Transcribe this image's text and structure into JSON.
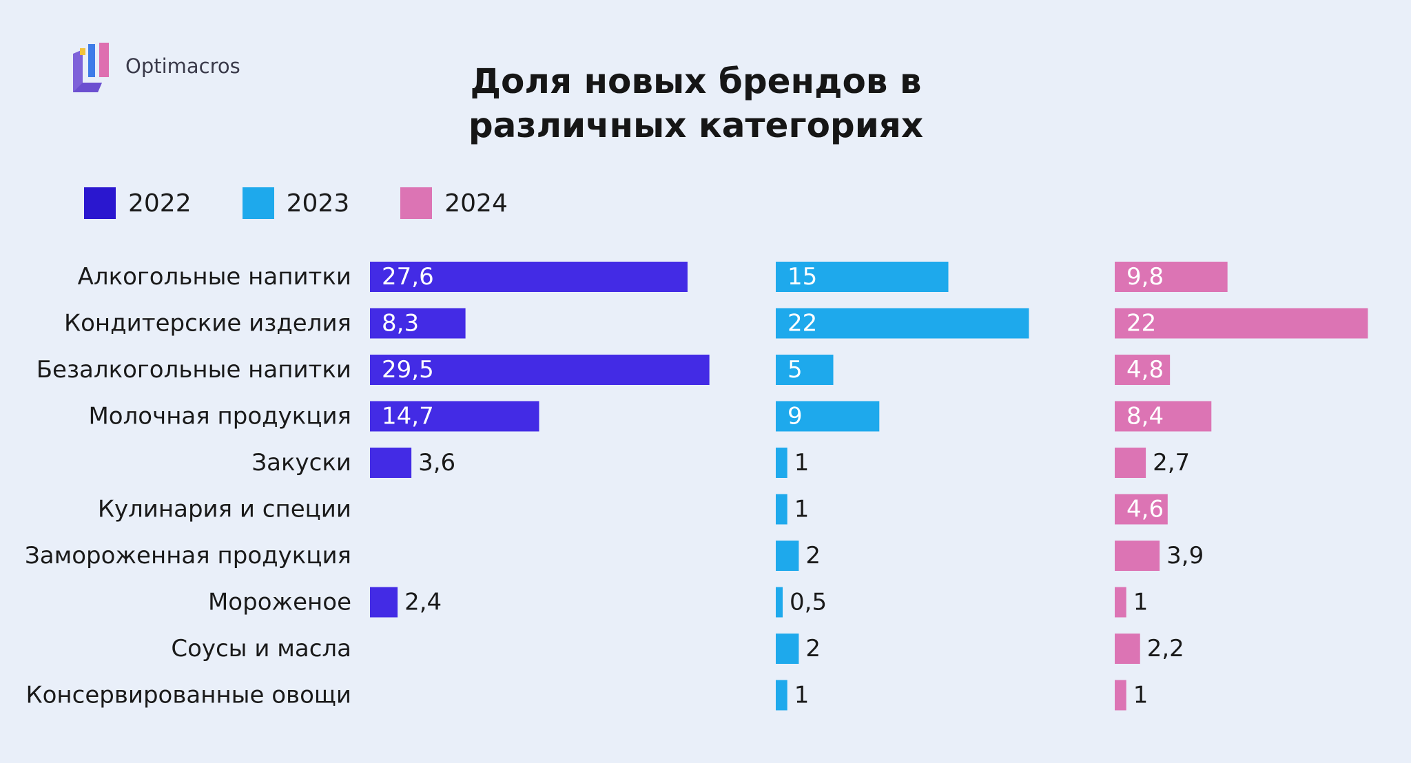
{
  "brand": {
    "name": "Optimacros"
  },
  "chart_data": {
    "type": "bar",
    "orientation": "horizontal",
    "layout": "small-multiples",
    "title": "Доля новых брендов в различных категориях",
    "title_lines": [
      "Доля новых брендов в",
      "различных категориях"
    ],
    "legend_position": "top-left",
    "grid": false,
    "categories": [
      "Алкогольные напитки",
      "Кондитерские изделия",
      "Безалкогольные напитки",
      "Молочная продукция",
      "Закуски",
      "Кулинария и специи",
      "Замороженная продукция",
      "Мороженое",
      "Соусы и масла",
      "Консервированные овощи"
    ],
    "series": [
      {
        "name": "2022",
        "color": "#432be5",
        "legend_color": "#2a17cf",
        "values": [
          27.6,
          8.3,
          29.5,
          14.7,
          3.6,
          null,
          null,
          2.4,
          null,
          null
        ],
        "labels": [
          "27,6",
          "8,3",
          "29,5",
          "14,7",
          "3,6",
          "",
          "",
          "2,4",
          "",
          ""
        ]
      },
      {
        "name": "2023",
        "color": "#1ea9ec",
        "legend_color": "#1ea9ec",
        "values": [
          15,
          22,
          5,
          9,
          1,
          1,
          2,
          0.5,
          2,
          1
        ],
        "labels": [
          "15",
          "22",
          "5",
          "9",
          "1",
          "1",
          "2",
          "0,5",
          "2",
          "1"
        ]
      },
      {
        "name": "2024",
        "color": "#dc74b4",
        "legend_color": "#dc74b4",
        "values": [
          9.8,
          22,
          4.8,
          8.4,
          2.7,
          4.6,
          3.9,
          1,
          2.2,
          1
        ],
        "labels": [
          "9,8",
          "22",
          "4,8",
          "8,4",
          "2,7",
          "4,6",
          "3,9",
          "1",
          "2,2",
          "1"
        ]
      }
    ]
  }
}
